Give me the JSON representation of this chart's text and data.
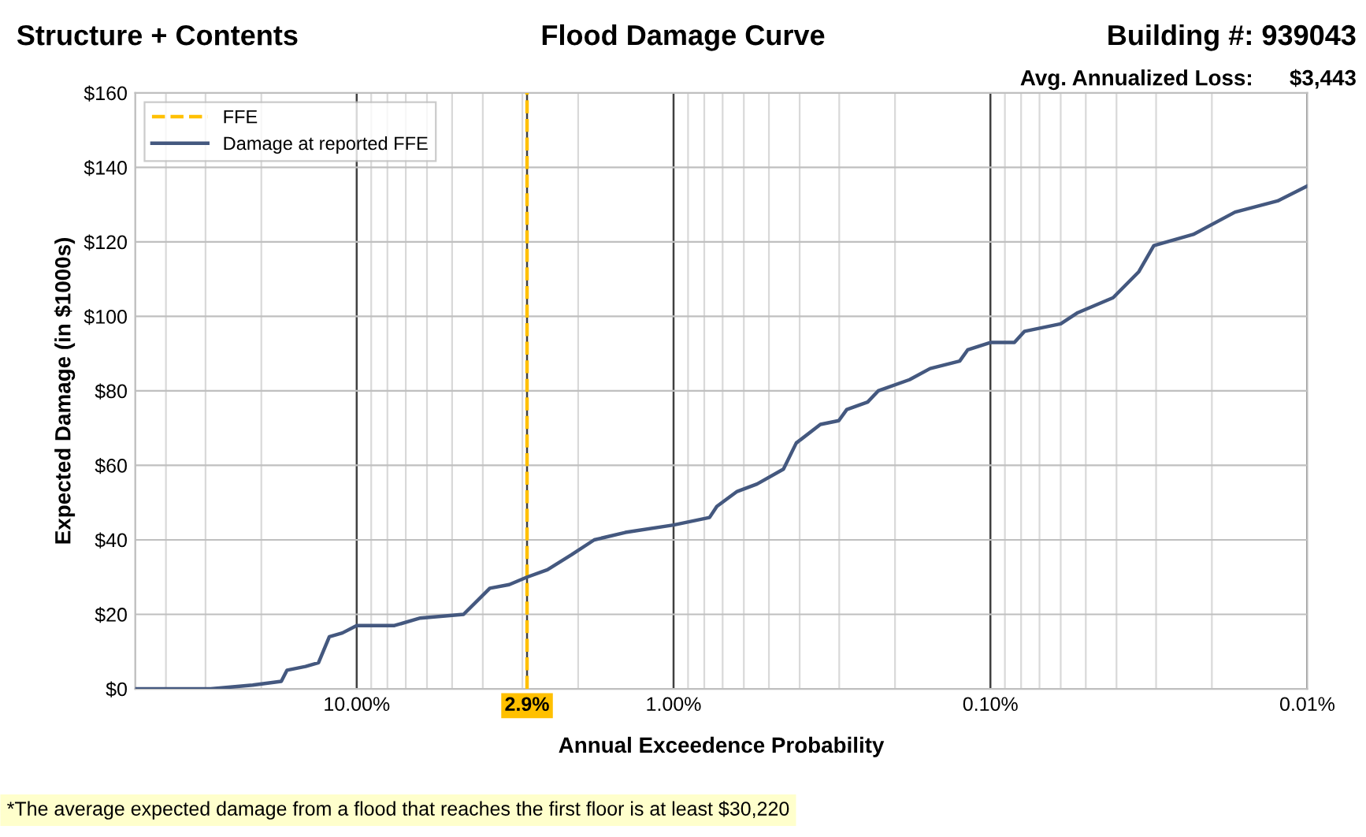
{
  "chart_data": {
    "type": "line",
    "title": "Flood Damage Curve",
    "xlabel": "Annual Exceedence Probability",
    "ylabel": "Expected Damage (in $1000s)",
    "annotations": [
      "Structure + Contents",
      "Building #: 939043",
      "Avg. Annualized Loss:      $3,443",
      "*The average expected damage from a flood that reaches the first floor is at least $30,220"
    ],
    "log": "x",
    "xlim": [
      50,
      0.01
    ],
    "xticks": [
      {
        "value": 10,
        "label": "10.00%"
      },
      {
        "value": 2.9,
        "label": "2.9%"
      },
      {
        "value": 1,
        "label": "1.00%"
      },
      {
        "value": 0.1,
        "label": "0.10%"
      },
      {
        "value": 0.01,
        "label": "0.01%"
      }
    ],
    "ylim": [
      0,
      160
    ],
    "yticks": [
      {
        "value": 0,
        "label": "$0"
      },
      {
        "value": 20,
        "label": "$20"
      },
      {
        "value": 40,
        "label": "$40"
      },
      {
        "value": 60,
        "label": "$60"
      },
      {
        "value": 80,
        "label": "$80"
      },
      {
        "value": 100,
        "label": "$100"
      },
      {
        "value": 120,
        "label": "$120"
      },
      {
        "value": 140,
        "label": "$140"
      },
      {
        "value": 160,
        "label": "$160"
      }
    ],
    "grid": true,
    "legend": "top left",
    "marker": "none",
    "line_style": "solid",
    "series": [
      {
        "name": "FFE",
        "color": "#ffc000",
        "line_style": "dashed",
        "x": [
          2.9,
          2.9
        ],
        "values": [
          0,
          160
        ]
      },
      {
        "name": "Damage at reported FFE",
        "color": "#44587f",
        "x": [
          50,
          28.9,
          21.3,
          17.3,
          16.6,
          14.5,
          13.2,
          12.2,
          11.1,
          10,
          7.6,
          6.3,
          4.6,
          3.8,
          3.3,
          2.9,
          2.5,
          2.1,
          1.78,
          1.42,
          1.0,
          0.77,
          0.73,
          0.63,
          0.545,
          0.45,
          0.41,
          0.344,
          0.301,
          0.284,
          0.244,
          0.226,
          0.18,
          0.155,
          0.125,
          0.118,
          0.1,
          0.084,
          0.078,
          0.06,
          0.053,
          0.041,
          0.034,
          0.0305,
          0.0229,
          0.0169,
          0.0124,
          0.01
        ],
        "values": [
          0,
          0,
          1,
          2,
          5,
          6,
          7,
          14,
          15,
          17,
          17,
          19,
          20,
          27,
          28,
          30,
          32,
          36,
          40,
          42,
          44,
          46,
          49,
          53,
          55,
          59,
          66,
          71,
          72,
          75,
          77,
          80,
          83,
          86,
          88,
          91,
          93,
          93,
          96,
          98,
          101,
          105,
          112,
          119,
          122,
          128,
          131,
          135
        ]
      }
    ]
  }
}
